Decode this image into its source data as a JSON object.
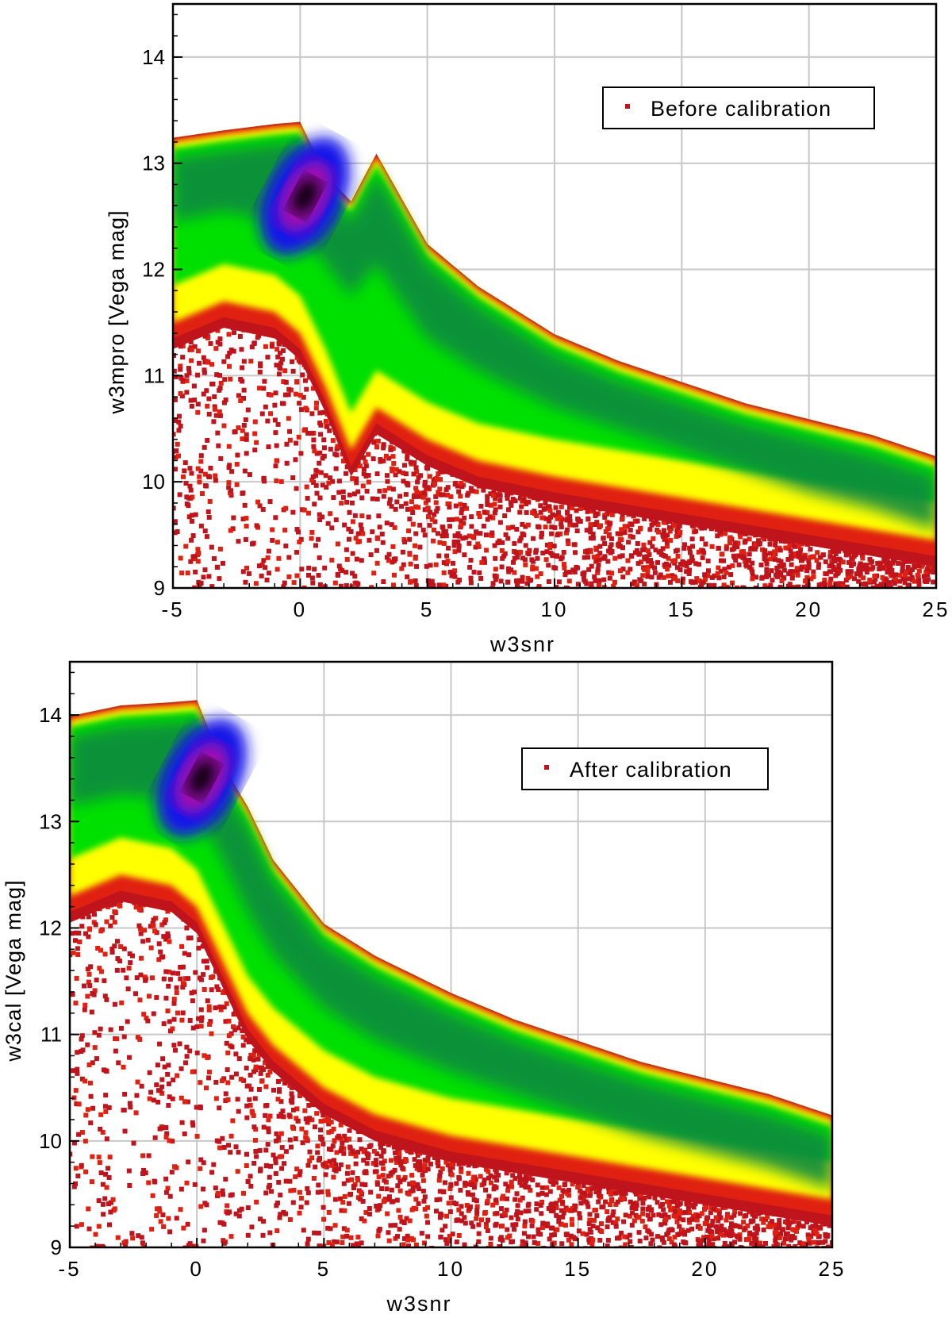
{
  "chart_data": [
    {
      "type": "heatmap",
      "subtype": "density-scatter",
      "xlabel": "w3snr",
      "ylabel": "w3mpro [Vega mag]",
      "xlim": [
        -5,
        25
      ],
      "ylim": [
        9,
        14.5
      ],
      "xticks": [
        -5,
        0,
        5,
        10,
        15,
        20,
        25
      ],
      "xtick_labels": [
        "-5",
        "0",
        "5",
        "10",
        "15",
        "20",
        "25"
      ],
      "yticks": [
        9,
        10,
        11,
        12,
        13,
        14
      ],
      "ytick_labels": [
        "9",
        "10",
        "11",
        "12",
        "13",
        "14"
      ],
      "grid": true,
      "legend": {
        "label": "Before calibration",
        "position": "top-right",
        "marker_color": "#c0141c"
      },
      "density_ridge": {
        "snr": [
          -5,
          -3,
          -1,
          0,
          1,
          2,
          3,
          5,
          7,
          10,
          12.5,
          15,
          17.5,
          20,
          22.5,
          25
        ],
        "mag_upper": [
          13.2,
          13.27,
          13.33,
          13.35,
          12.85,
          12.6,
          13.05,
          12.2,
          11.8,
          11.35,
          11.1,
          10.9,
          10.7,
          10.55,
          10.4,
          10.2
        ],
        "mag_core": [
          12.7,
          12.8,
          12.7,
          12.6,
          12.3,
          12.0,
          12.3,
          11.6,
          11.3,
          10.95,
          10.75,
          10.55,
          10.35,
          10.15,
          10.0,
          9.8
        ],
        "mag_lower": [
          11.4,
          11.6,
          11.5,
          11.3,
          10.8,
          10.2,
          10.6,
          10.3,
          10.1,
          9.95,
          9.85,
          9.75,
          9.65,
          9.55,
          9.45,
          9.35
        ]
      },
      "density_colorscale": [
        "#c0141c",
        "#e02010",
        "#ffff00",
        "#00e000",
        "#0a8a40",
        "#1818e8",
        "#a010b0",
        "#100010"
      ]
    },
    {
      "type": "heatmap",
      "subtype": "density-scatter",
      "xlabel": "w3snr",
      "ylabel": "w3cal [Vega mag]",
      "xlim": [
        -5,
        25
      ],
      "ylim": [
        9,
        14.5
      ],
      "xticks": [
        -5,
        0,
        5,
        10,
        15,
        20,
        25
      ],
      "xtick_labels": [
        "-5",
        "0",
        "5",
        "10",
        "15",
        "20",
        "25"
      ],
      "yticks": [
        9,
        10,
        11,
        12,
        13,
        14
      ],
      "ytick_labels": [
        "9",
        "10",
        "11",
        "12",
        "13",
        "14"
      ],
      "grid": true,
      "legend": {
        "label": "After calibration",
        "position": "top-right",
        "marker_color": "#c0141c"
      },
      "density_ridge": {
        "snr": [
          -5,
          -3,
          -1,
          0,
          1,
          2,
          3,
          5,
          7,
          10,
          12.5,
          15,
          17.5,
          20,
          22.5,
          25
        ],
        "mag_upper": [
          13.95,
          14.05,
          14.08,
          14.1,
          13.5,
          13.1,
          12.6,
          12.0,
          11.7,
          11.35,
          11.1,
          10.9,
          10.7,
          10.55,
          10.4,
          10.2
        ],
        "mag_core": [
          13.4,
          13.5,
          13.45,
          13.35,
          12.9,
          12.4,
          12.0,
          11.5,
          11.2,
          10.9,
          10.7,
          10.5,
          10.3,
          10.15,
          10.0,
          9.8
        ],
        "mag_lower": [
          12.2,
          12.4,
          12.3,
          12.1,
          11.6,
          11.1,
          10.8,
          10.4,
          10.15,
          9.95,
          9.85,
          9.75,
          9.65,
          9.55,
          9.45,
          9.35
        ]
      },
      "density_colorscale": [
        "#c0141c",
        "#e02010",
        "#ffff00",
        "#00e000",
        "#0a8a40",
        "#1818e8",
        "#a010b0",
        "#100010"
      ]
    }
  ]
}
